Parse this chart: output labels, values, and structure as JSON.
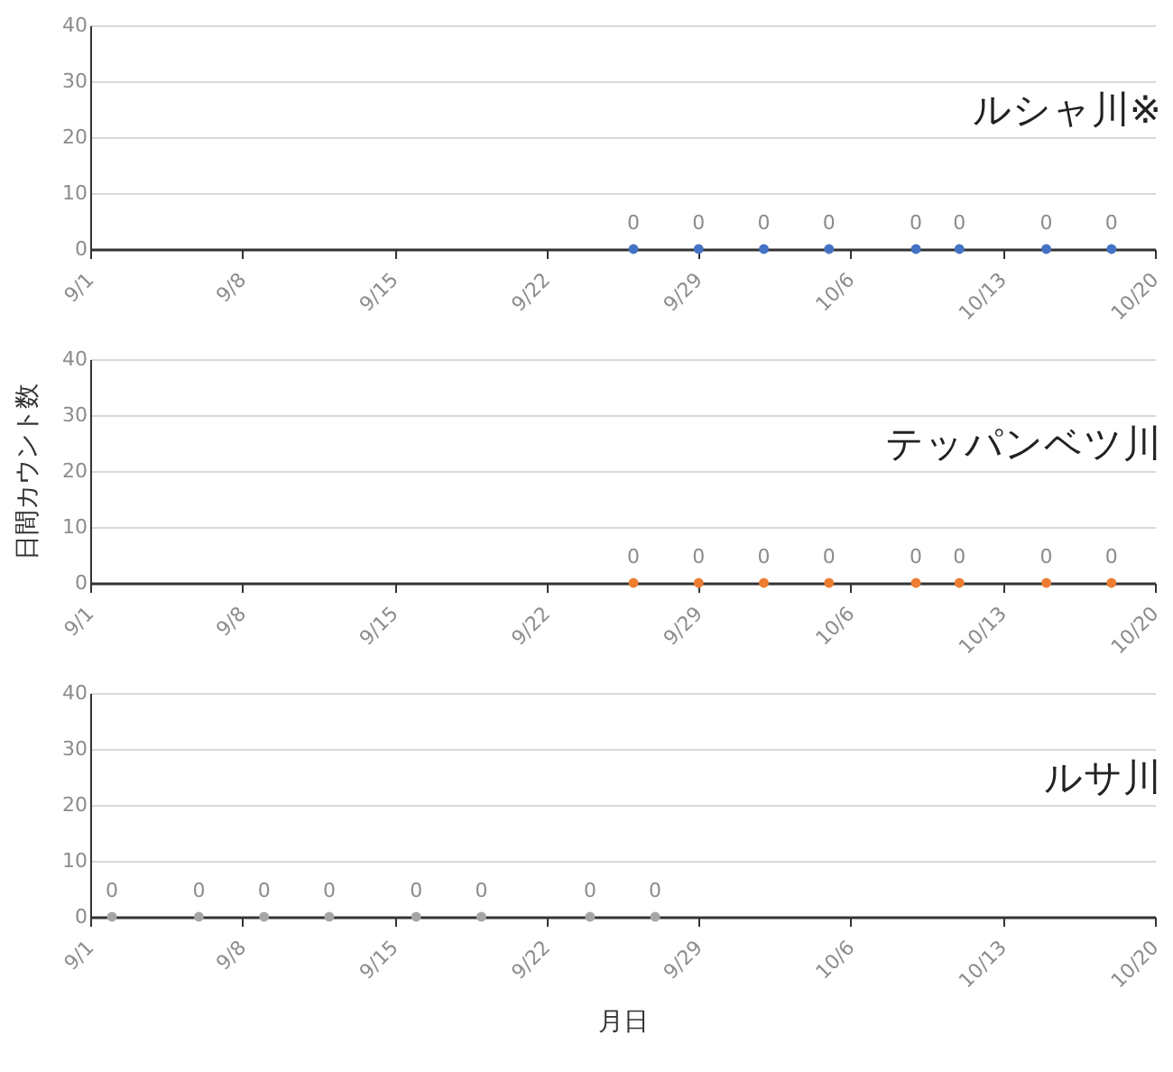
{
  "chart_data": [
    {
      "type": "scatter",
      "title": "ルシャ川※",
      "x": [
        "--09-26",
        "--09-29",
        "--10-02",
        "--10-05",
        "--10-09",
        "--10-11",
        "--10-15",
        "--10-18"
      ],
      "series": [
        {
          "color": "#4472c4",
          "values": [
            0,
            0,
            0,
            0,
            0,
            0,
            0,
            0
          ]
        }
      ],
      "xlim": [
        "--09-01",
        "--10-20"
      ],
      "xticks": [
        {
          "value": "--09-01",
          "label": "9/1"
        },
        {
          "value": "--09-08",
          "label": "9/8"
        },
        {
          "value": "--09-15",
          "label": "9/15"
        },
        {
          "value": "--09-22",
          "label": "9/22"
        },
        {
          "value": "--09-29",
          "label": "9/29"
        },
        {
          "value": "--10-06",
          "label": "10/6"
        },
        {
          "value": "--10-13",
          "label": "10/13"
        },
        {
          "value": "--10-20",
          "label": "10/20"
        }
      ],
      "ylim": [
        0,
        40
      ],
      "yticks": [
        0,
        10,
        20,
        30,
        40
      ],
      "grid": "y",
      "marker": "circle",
      "data_labels": true
    },
    {
      "type": "scatter",
      "title": "テッパンベツ川",
      "ylabel": "日間カウント数",
      "x": [
        "--09-26",
        "--09-29",
        "--10-02",
        "--10-05",
        "--10-09",
        "--10-11",
        "--10-15",
        "--10-18"
      ],
      "series": [
        {
          "color": "#ed7d31",
          "values": [
            0,
            0,
            0,
            0,
            0,
            0,
            0,
            0
          ]
        }
      ],
      "xlim": [
        "--09-01",
        "--10-20"
      ],
      "xticks": [
        {
          "value": "--09-01",
          "label": "9/1"
        },
        {
          "value": "--09-08",
          "label": "9/8"
        },
        {
          "value": "--09-15",
          "label": "9/15"
        },
        {
          "value": "--09-22",
          "label": "9/22"
        },
        {
          "value": "--09-29",
          "label": "9/29"
        },
        {
          "value": "--10-06",
          "label": "10/6"
        },
        {
          "value": "--10-13",
          "label": "10/13"
        },
        {
          "value": "--10-20",
          "label": "10/20"
        }
      ],
      "ylim": [
        0,
        40
      ],
      "yticks": [
        0,
        10,
        20,
        30,
        40
      ],
      "grid": "y",
      "marker": "circle",
      "data_labels": true
    },
    {
      "type": "scatter",
      "title": "ルサ川",
      "xlabel": "月日",
      "x": [
        "--09-02",
        "--09-06",
        "--09-09",
        "--09-12",
        "--09-16",
        "--09-19",
        "--09-24",
        "--09-27"
      ],
      "series": [
        {
          "color": "#a5a5a5",
          "values": [
            0,
            0,
            0,
            0,
            0,
            0,
            0,
            0
          ]
        }
      ],
      "xlim": [
        "--09-01",
        "--10-20"
      ],
      "xticks": [
        {
          "value": "--09-01",
          "label": "9/1"
        },
        {
          "value": "--09-08",
          "label": "9/8"
        },
        {
          "value": "--09-15",
          "label": "9/15"
        },
        {
          "value": "--09-22",
          "label": "9/22"
        },
        {
          "value": "--09-29",
          "label": "9/29"
        },
        {
          "value": "--10-06",
          "label": "10/6"
        },
        {
          "value": "--10-13",
          "label": "10/13"
        },
        {
          "value": "--10-20",
          "label": "10/20"
        }
      ],
      "ylim": [
        0,
        40
      ],
      "yticks": [
        0,
        10,
        20,
        30,
        40
      ],
      "grid": "y",
      "marker": "circle",
      "data_labels": true
    }
  ]
}
